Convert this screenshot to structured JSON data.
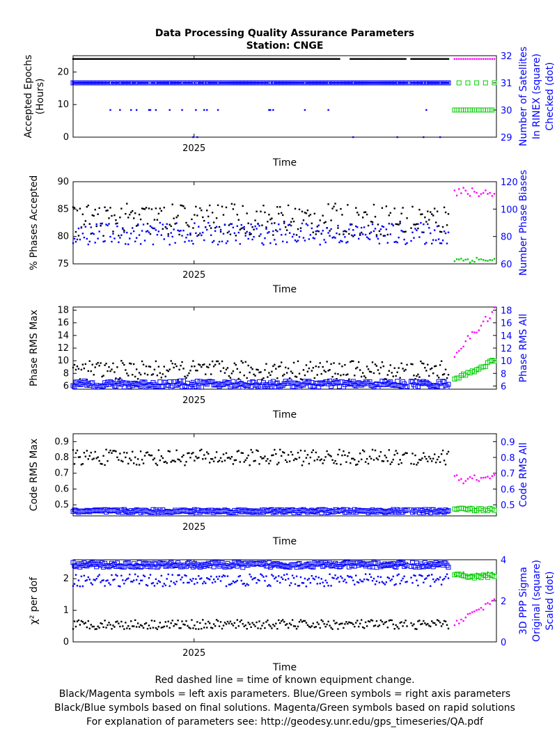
{
  "figure": {
    "title_line1": "Data Processing Quality Assurance Parameters",
    "title_line2": "Station: CNGE",
    "footer": [
      "Red dashed line = time of known equipment change.",
      "Black/Magenta symbols = left axis parameters. Blue/Green symbols = right axis parameters",
      "Black/Blue symbols based on final solutions.  Magenta/Green symbols based on rapid solutions",
      "For explanation of parameters see: http://geodesy.unr.edu/gps_timeseries/QA.pdf"
    ]
  },
  "colors": {
    "final_left": "#000000",
    "final_right": "#0000ff",
    "rapid_left": "#ff00ff",
    "rapid_right": "#00cc00",
    "right_axis": "#0000ff"
  },
  "chart_data": [
    {
      "type": "scatter",
      "ylabel_left": [
        "Accepted Epochs",
        "(Hours)"
      ],
      "ylabel_right": [
        "Number of Satellites",
        "In RINEX (square)",
        "Checked (dot)"
      ],
      "xlabel": "Time",
      "x_tick_labels": [
        "2025"
      ],
      "xlim": [
        2024.76,
        2025.6
      ],
      "x_ticks": [
        2025.0
      ],
      "ylim_left": [
        0,
        25
      ],
      "yticks_left": [
        0,
        10,
        20
      ],
      "ylim_right": [
        29,
        32
      ],
      "yticks_right": [
        29,
        30,
        31,
        32
      ],
      "final_end": 2025.505,
      "rapid_range": [
        2025.517,
        2025.597
      ],
      "series": [
        {
          "side": "left",
          "marker": "dot",
          "source": "final",
          "base": 24,
          "noise": 0,
          "gaps": [
            [
              2025.29,
              2025.31
            ],
            [
              2025.42,
              2025.425
            ]
          ]
        },
        {
          "side": "right",
          "marker": "square",
          "source": "final",
          "base": 31,
          "noise": 0,
          "fill_dense": true
        },
        {
          "side": "right",
          "marker": "dot",
          "source": "final",
          "base": 31,
          "low_values": [
            29,
            30
          ],
          "noise": 0
        },
        {
          "side": "left",
          "marker": "dot",
          "source": "rapid",
          "base": 24,
          "noise": 0
        },
        {
          "side": "right",
          "marker": "square",
          "source": "rapid",
          "values": [
            30,
            31
          ],
          "noise": 0
        }
      ]
    },
    {
      "type": "scatter",
      "ylabel_left": [
        "% Phases Accepted"
      ],
      "ylabel_right": [
        "Number Phase Biases"
      ],
      "xlabel": "Time",
      "x_tick_labels": [
        "2025"
      ],
      "xlim": [
        2024.76,
        2025.6
      ],
      "x_ticks": [
        2025.0
      ],
      "ylim_left": [
        75,
        90
      ],
      "yticks_left": [
        75,
        80,
        85,
        90
      ],
      "ylim_right": [
        60,
        120
      ],
      "yticks_right": [
        60,
        80,
        100,
        120
      ],
      "final_end": 2025.505,
      "rapid_range": [
        2025.517,
        2025.597
      ],
      "series": [
        {
          "side": "left",
          "marker": "dot",
          "source": "final",
          "base": 83,
          "noise": 3
        },
        {
          "side": "right",
          "marker": "dot",
          "source": "final",
          "base": 82,
          "noise": 8
        },
        {
          "side": "left",
          "marker": "dot",
          "source": "rapid",
          "base": 88,
          "noise": 1
        },
        {
          "side": "right",
          "marker": "dot",
          "source": "rapid",
          "base": 63,
          "noise": 2
        }
      ]
    },
    {
      "type": "scatter",
      "ylabel_left": [
        "Phase RMS Max"
      ],
      "ylabel_right": [
        "Phase RMS All"
      ],
      "xlabel": "Time",
      "x_tick_labels": [
        "2025"
      ],
      "xlim": [
        2024.76,
        2025.6
      ],
      "x_ticks": [
        2025.0
      ],
      "ylim_left": [
        5.5,
        18.5
      ],
      "yticks_left": [
        6,
        8,
        10,
        12,
        14,
        16,
        18
      ],
      "ylim_right": [
        5.5,
        18.5
      ],
      "yticks_right": [
        6,
        8,
        10,
        12,
        14,
        16,
        18
      ],
      "final_end": 2025.505,
      "rapid_range": [
        2025.517,
        2025.597
      ],
      "series": [
        {
          "side": "left",
          "marker": "dot",
          "source": "final",
          "base": 8.5,
          "noise": 1.5
        },
        {
          "side": "right",
          "marker": "square",
          "source": "final",
          "base": 6.3,
          "noise": 0.5
        },
        {
          "side": "left",
          "marker": "dot",
          "source": "rapid",
          "start": 11,
          "end": 18,
          "noise": 0.6
        },
        {
          "side": "right",
          "marker": "square",
          "source": "rapid",
          "start": 7,
          "end": 10,
          "noise": 0.3
        }
      ]
    },
    {
      "type": "scatter",
      "ylabel_left": [
        "Code RMS Max"
      ],
      "ylabel_right": [
        "Code RMS All"
      ],
      "xlabel": "Time",
      "x_tick_labels": [
        "2025"
      ],
      "xlim": [
        2024.76,
        2025.6
      ],
      "x_ticks": [
        2025.0
      ],
      "ylim_left": [
        0.43,
        0.95
      ],
      "yticks_left": [
        0.5,
        0.6,
        0.7,
        0.8,
        0.9
      ],
      "ylim_right": [
        0.43,
        0.95
      ],
      "yticks_right": [
        0.5,
        0.6,
        0.7,
        0.8,
        0.9
      ],
      "final_end": 2025.505,
      "rapid_range": [
        2025.517,
        2025.597
      ],
      "series": [
        {
          "side": "left",
          "marker": "dot",
          "source": "final",
          "base": 0.8,
          "noise": 0.05
        },
        {
          "side": "right",
          "marker": "square",
          "source": "final",
          "base": 0.46,
          "noise": 0.01
        },
        {
          "side": "left",
          "marker": "dot",
          "source": "rapid",
          "base": 0.66,
          "noise": 0.03
        },
        {
          "side": "right",
          "marker": "square",
          "source": "rapid",
          "base": 0.47,
          "noise": 0.01
        }
      ]
    },
    {
      "type": "scatter",
      "ylabel_left": [
        "χ² per dof"
      ],
      "ylabel_right": [
        "3D PPP Sigma",
        "Original (square)",
        "Scaled (dot)"
      ],
      "xlabel": "Time",
      "x_tick_labels": [
        "2025"
      ],
      "xlim": [
        2024.76,
        2025.6
      ],
      "x_ticks": [
        2025.0
      ],
      "ylim_left": [
        0,
        2.6
      ],
      "yticks_left": [
        0,
        1,
        2
      ],
      "ylim_right": [
        0,
        4
      ],
      "yticks_right": [
        0,
        2,
        4
      ],
      "final_end": 2025.505,
      "rapid_range": [
        2025.517,
        2025.597
      ],
      "series": [
        {
          "side": "left",
          "marker": "dot",
          "source": "final",
          "base": 0.55,
          "noise": 0.15
        },
        {
          "side": "right",
          "marker": "square",
          "source": "final",
          "base": 3.75,
          "noise": 0.12
        },
        {
          "side": "right",
          "marker": "dot",
          "source": "final",
          "base": 3.0,
          "noise": 0.3
        },
        {
          "side": "left",
          "marker": "dot",
          "source": "rapid",
          "start": 0.6,
          "end": 1.3,
          "noise": 0.1
        },
        {
          "side": "right",
          "marker": "square",
          "source": "rapid",
          "base": 3.2,
          "noise": 0.1
        },
        {
          "side": "right",
          "marker": "dot",
          "source": "rapid",
          "base": 3.3,
          "noise": 0.1
        }
      ]
    }
  ]
}
